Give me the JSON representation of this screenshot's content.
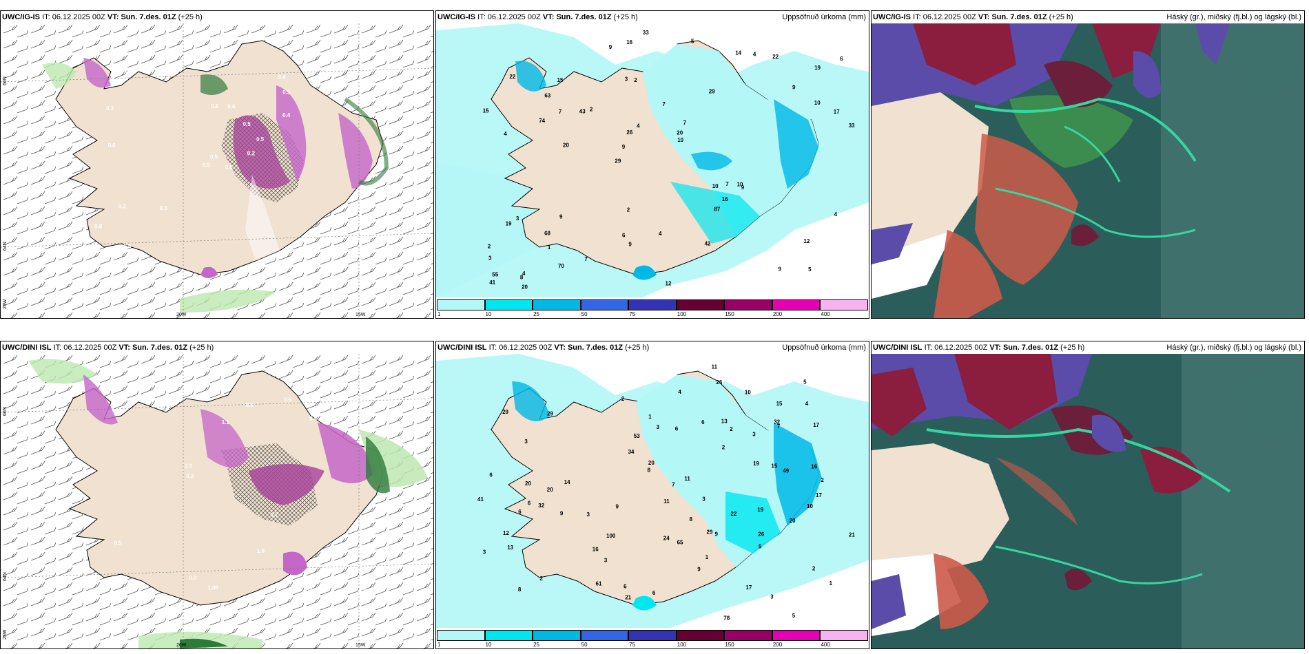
{
  "panels": [
    {
      "model": "UWC/IG-IS",
      "it_label": "IT:",
      "it": "06.12.2025 00Z",
      "vt_label": "VT:",
      "vt": "Sun. 7.des. 01Z",
      "lead": "(+25 h)",
      "right": ""
    },
    {
      "model": "UWC/IG-IS",
      "it_label": "IT:",
      "it": "06.12.2025 00Z",
      "vt_label": "VT:",
      "vt": "Sun. 7.des. 01Z",
      "lead": "(+25 h)",
      "right": "Uppsöfnuð úrkoma (mm)"
    },
    {
      "model": "UWC/IG-IS",
      "it_label": "IT:",
      "it": "06.12.2025 00Z",
      "vt_label": "VT:",
      "vt": "Sun. 7.des. 01Z",
      "lead": "(+25 h)",
      "right": "Háský (gr.), miðský (fj.bl.) og lágský (bl.)"
    },
    {
      "model": "UWC/DINI ISL",
      "it_label": "IT:",
      "it": "06.12.2025 00Z",
      "vt_label": "VT:",
      "vt": "Sun. 7.des. 01Z",
      "lead": "(+25 h)",
      "right": ""
    },
    {
      "model": "UWC/DINI ISL",
      "it_label": "IT:",
      "it": "06.12.2025 00Z",
      "vt_label": "VT:",
      "vt": "Sun. 7.des. 01Z",
      "lead": "(+25 h)",
      "right": "Uppsöfnuð úrkoma (mm)"
    },
    {
      "model": "UWC/DINI ISL",
      "it_label": "IT:",
      "it": "06.12.2025 00Z",
      "vt_label": "VT:",
      "vt": "Sun. 7.des. 01Z",
      "lead": "(+25 h)",
      "right": "Háský (gr.), miðský (fj.bl.) og lágský (bl.)"
    }
  ],
  "axes": {
    "lat66": "66N",
    "lat64": "64N",
    "lon25": "25W",
    "lon20": "20W",
    "lon15": "15W"
  },
  "colorbar": {
    "ticks": [
      "1",
      "10",
      "25",
      "50",
      "75",
      "100",
      "150",
      "200",
      "400"
    ],
    "colors": [
      "#b3f7f7",
      "#00e6ef",
      "#00b8e6",
      "#3366e6",
      "#3333b3",
      "#660033",
      "#990066",
      "#e600b3",
      "#f5b3f0"
    ]
  },
  "precip_labels_ig": [
    "5",
    "4",
    "19",
    "29",
    "29",
    "4",
    "3",
    "7",
    "3",
    "2",
    "3",
    "1",
    "2",
    "7",
    "9",
    "22",
    "16",
    "33",
    "10",
    "10",
    "9",
    "6",
    "26",
    "15",
    "14",
    "9",
    "9",
    "12",
    "10",
    "12",
    "43",
    "74",
    "87",
    "70",
    "17",
    "20",
    "55",
    "9",
    "10",
    "19",
    "9",
    "6",
    "16",
    "42",
    "68",
    "20",
    "41",
    "4",
    "22",
    "33",
    "20",
    "15",
    "63",
    "4",
    "8",
    "5",
    "9",
    "4",
    "4",
    "2",
    "7",
    "7",
    "7",
    "2"
  ],
  "precip_labels_dini": [
    "5",
    "32",
    "29",
    "29",
    "2",
    "3",
    "2",
    "3",
    "3",
    "3",
    "2",
    "3",
    "3",
    "2",
    "3",
    "13",
    "19",
    "7",
    "6",
    "8",
    "5",
    "6",
    "15",
    "21",
    "17",
    "20",
    "9",
    "11",
    "8",
    "4",
    "9",
    "6",
    "16",
    "13",
    "53",
    "20",
    "10",
    "17",
    "15",
    "78",
    "100",
    "65",
    "61",
    "11",
    "9",
    "20",
    "17",
    "26",
    "6",
    "24",
    "22",
    "16",
    "26",
    "49",
    "34",
    "41",
    "21",
    "20",
    "8",
    "19",
    "6",
    "32",
    "29",
    "4",
    "3",
    "12",
    "14",
    "11",
    "10",
    "7",
    "5",
    "6",
    "9",
    "1",
    "2",
    "2",
    "1",
    "1",
    "6"
  ],
  "wind_labels_ig": [
    "0.6",
    "0.3",
    "0.5",
    "0.8",
    "0.5",
    "0.3",
    "0.4",
    "0.6",
    "0.5",
    "0.2",
    "0.4",
    "0.5",
    "0.6",
    "0.3",
    "0.5",
    "0.4",
    "0.6",
    "0.8",
    "0.5",
    "0.3"
  ],
  "wind_labels_dini": [
    "0.8",
    "0.7",
    "0.7",
    "1.9",
    "1.1",
    "0.5",
    "0.3",
    "0.4",
    "0.6",
    "0.9",
    "0.5",
    "0.3",
    "1.00",
    "0.5",
    "0.6",
    "2.0",
    "0.8",
    "0.5"
  ]
}
